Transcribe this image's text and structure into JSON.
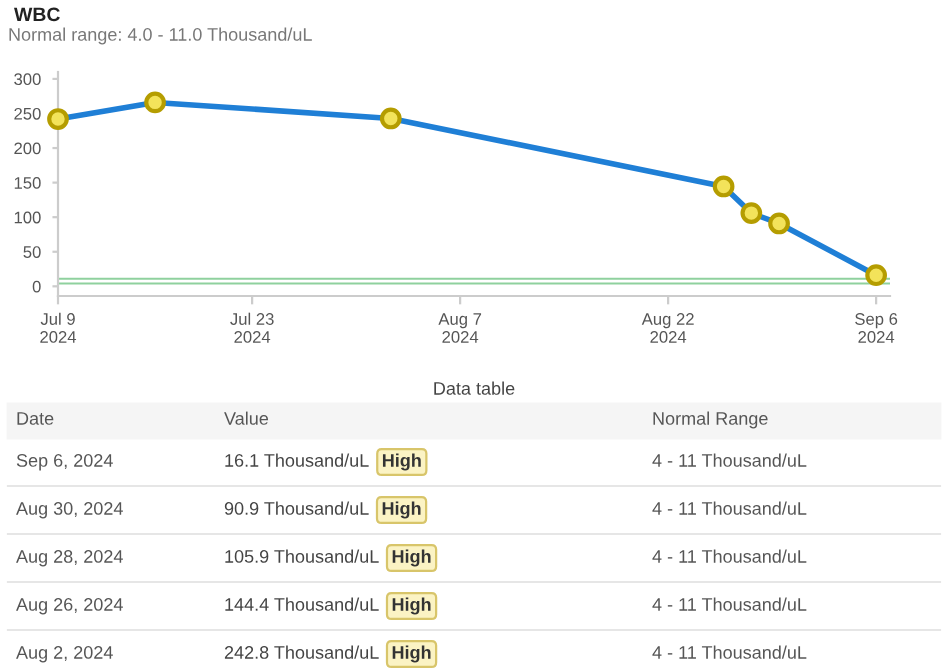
{
  "chart_data": {
    "type": "line",
    "title": "WBC",
    "subtitle": "Normal range: 4.0 - 11.0 Thousand/uL",
    "x": [
      "2024-07-09",
      "2024-07-16",
      "2024-08-02",
      "2024-08-26",
      "2024-08-28",
      "2024-08-30",
      "2024-09-06"
    ],
    "series": [
      {
        "color": "#1f7fd6",
        "values": [
          242,
          266,
          242.8,
          144.4,
          105.9,
          90.9,
          16.1
        ]
      }
    ],
    "marker": "circle",
    "line_style": "solid",
    "grid": false,
    "legend": false,
    "xlim": [
      "2024-07-09",
      "2024-09-07"
    ],
    "ylim": [
      -14,
      310
    ],
    "xticks": [
      {
        "value": "2024-07-09",
        "label": "Jul 9\n2024"
      },
      {
        "value": "2024-07-23",
        "label": "Jul 23\n2024"
      },
      {
        "value": "2024-08-07",
        "label": "Aug 7\n2024"
      },
      {
        "value": "2024-08-22",
        "label": "Aug 22\n2024"
      },
      {
        "value": "2024-09-06",
        "label": "Sep 6\n2024"
      }
    ],
    "yticks": [
      0,
      50,
      100,
      150,
      200,
      250,
      300
    ],
    "ref_lines": [
      {
        "axis": "y",
        "value": 11,
        "color": "#8fd19e"
      },
      {
        "axis": "y",
        "value": 4,
        "color": "#8fd19e"
      }
    ],
    "annotations": [
      "Data table",
      "Date",
      "Value",
      "Normal Range",
      "Sep 6, 2024",
      "16.1 Thousand/uL",
      "High",
      "4 - 11 Thousand/uL",
      "Aug 30, 2024",
      "90.9 Thousand/uL",
      "High",
      "4 - 11 Thousand/uL",
      "Aug 28, 2024",
      "105.9 Thousand/uL",
      "High",
      "4 - 11 Thousand/uL",
      "Aug 26, 2024",
      "144.4 Thousand/uL",
      "High",
      "4 - 11 Thousand/uL",
      "Aug 2, 2024",
      "242.8 Thousand/uL",
      "High",
      "4 - 11 Thousand/uL"
    ]
  }
}
